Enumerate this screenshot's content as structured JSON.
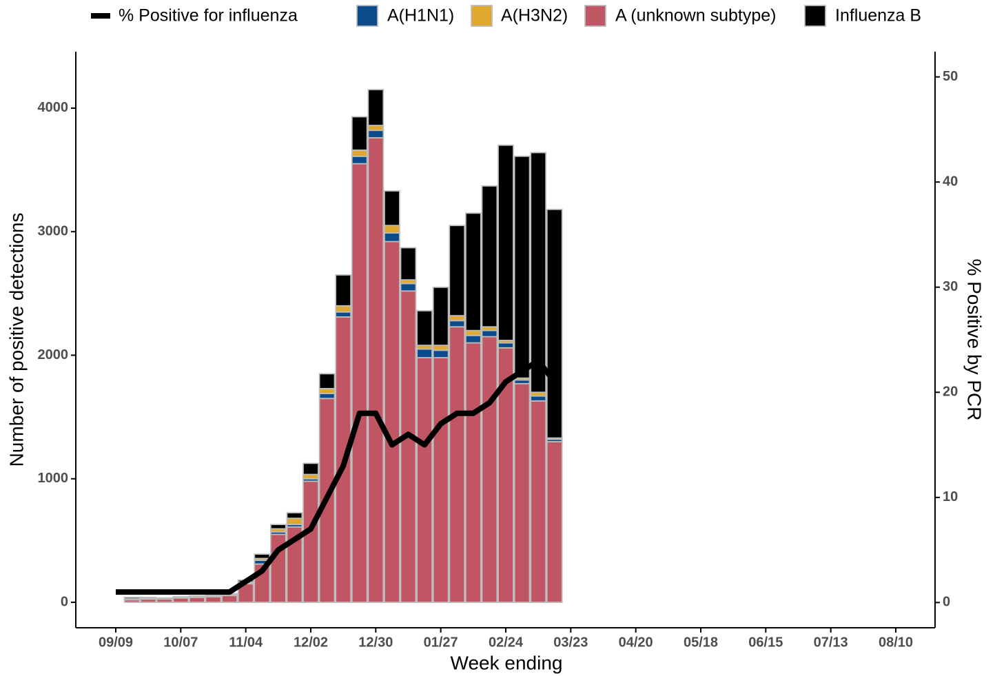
{
  "chart_data": {
    "type": "bar",
    "x_label": "Week ending",
    "y_label": "Number of positive detections",
    "y2_label": "% Positive by PCR",
    "categories": [
      "09/09",
      null,
      null,
      null,
      "10/07",
      null,
      null,
      null,
      "11/04",
      null,
      null,
      null,
      "12/02",
      null,
      null,
      null,
      "12/30",
      null,
      null,
      null,
      "01/27",
      null,
      null,
      null,
      "02/24",
      null,
      null,
      null,
      "03/23",
      null,
      null,
      null,
      "04/20",
      null,
      null,
      null,
      "05/18",
      null,
      null,
      null,
      "06/15",
      null,
      null,
      null,
      "07/13",
      null,
      null,
      null,
      "08/10"
    ],
    "ylim": [
      -206,
      4457
    ],
    "yticks": [
      0,
      1000,
      2000,
      3000,
      4000
    ],
    "y2lim": [
      -2.4,
      52.4
    ],
    "y2ticks": [
      0,
      10,
      20,
      30,
      40,
      50
    ],
    "stacked": true,
    "series": [
      {
        "name": "% Positive for influenza",
        "type": "line",
        "axis": "y2",
        "color": "#000000",
        "values": [
          1,
          1,
          1,
          1,
          1,
          1,
          1,
          1,
          2,
          3,
          5,
          6,
          7,
          10,
          13,
          18,
          18,
          15,
          16,
          15,
          17,
          18,
          18,
          19,
          21,
          22,
          23,
          21,
          null,
          null,
          null,
          null,
          null,
          null,
          null,
          null,
          null,
          null,
          null,
          null,
          null,
          null,
          null,
          null,
          null,
          null,
          null,
          null,
          null
        ]
      },
      {
        "name": "A(H1N1)",
        "color": "#0b4a8b",
        "values": [
          null,
          5,
          3,
          2,
          3,
          3,
          3,
          5,
          10,
          30,
          20,
          20,
          20,
          40,
          40,
          60,
          60,
          70,
          60,
          70,
          60,
          50,
          60,
          50,
          40,
          30,
          40,
          20,
          null,
          null,
          null,
          null,
          null,
          null,
          null,
          null,
          null,
          null,
          null,
          null,
          null,
          null,
          null,
          null,
          null,
          null,
          null,
          null,
          null
        ]
      },
      {
        "name": "A(H3N2)",
        "color": "#e0a82e",
        "values": [
          null,
          3,
          2,
          2,
          2,
          2,
          2,
          3,
          5,
          15,
          25,
          50,
          35,
          40,
          50,
          50,
          40,
          60,
          30,
          30,
          40,
          40,
          40,
          30,
          20,
          15,
          30,
          10,
          null,
          null,
          null,
          null,
          null,
          null,
          null,
          null,
          null,
          null,
          null,
          null,
          null,
          null,
          null,
          null,
          null,
          null,
          null,
          null,
          null
        ]
      },
      {
        "name": "A (unknown subtype)",
        "color": "#c05563",
        "values": [
          null,
          20,
          25,
          25,
          35,
          40,
          45,
          55,
          150,
          310,
          550,
          610,
          980,
          1650,
          2310,
          3550,
          3760,
          2920,
          2520,
          1980,
          1980,
          2230,
          2100,
          2150,
          2060,
          1770,
          1630,
          1300,
          null,
          null,
          null,
          null,
          null,
          null,
          null,
          null,
          null,
          null,
          null,
          null,
          null,
          null,
          null,
          null,
          null,
          null,
          null,
          null,
          null
        ]
      },
      {
        "name": "Influenza B",
        "color": "#000000",
        "values": [
          null,
          12,
          10,
          6,
          5,
          5,
          5,
          7,
          15,
          35,
          35,
          45,
          90,
          120,
          250,
          270,
          290,
          280,
          260,
          280,
          470,
          730,
          950,
          1140,
          1580,
          1795,
          1940,
          1850,
          null,
          null,
          null,
          null,
          null,
          null,
          null,
          null,
          null,
          null,
          null,
          null,
          null,
          null,
          null,
          null,
          null,
          null,
          null,
          null,
          null
        ]
      }
    ]
  }
}
